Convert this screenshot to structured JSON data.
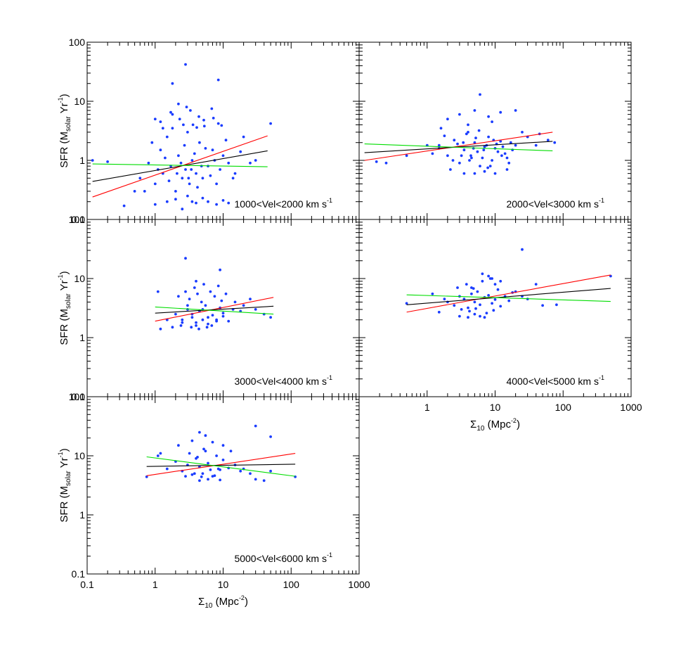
{
  "figure": {
    "ylabel": {
      "main": "SFR (M",
      "sub": "solar",
      "mid": " Yr",
      "sup": "-1",
      "close": ")"
    },
    "xlabel": {
      "sigma": "Σ",
      "sub": "10",
      "mid": " (Mpc",
      "sup": "-2",
      "close": ")"
    },
    "y_ticks": [
      "0.1",
      "1",
      "10",
      "100"
    ],
    "x_ticks": [
      "0.1",
      "1",
      "10",
      "100",
      "1000"
    ]
  },
  "chart_data": [
    {
      "type": "scatter",
      "annotation": {
        "text": "1000<Vel<2000 km s",
        "sup": "-1"
      },
      "xscale": "log",
      "yscale": "log",
      "xlim": [
        0.1,
        1000
      ],
      "ylim": [
        0.1,
        100
      ],
      "points": {
        "x": [
          0.6,
          0.8,
          1.0,
          1.2,
          1.3,
          1.5,
          1.7,
          2.0,
          2.2,
          2.5,
          2.8,
          3.0,
          3.2,
          3.5,
          4.0,
          4.5,
          5.0,
          6.0,
          7.0,
          8.0,
          10.0,
          12.0,
          15.0,
          20.0,
          30.0,
          0.7,
          0.9,
          1.1,
          1.4,
          1.6,
          1.8,
          2.1,
          2.4,
          2.7,
          3.1,
          3.4,
          3.8,
          4.2,
          4.8,
          5.5,
          6.5,
          7.5,
          9.0,
          11.0,
          14.0,
          18.0,
          25.0,
          0.12,
          0.2,
          0.35,
          0.5,
          1.0,
          1.5,
          2.0,
          2.5,
          3.0,
          3.5,
          4.0,
          5.0,
          6.0,
          8.0,
          10.0,
          12.0,
          1.2,
          1.8,
          2.3,
          2.9,
          3.6,
          4.4,
          5.3,
          6.8,
          8.5,
          1.0,
          1.3,
          1.7,
          2.2,
          2.6,
          3.3,
          4.1,
          5.2,
          7.2,
          9.5,
          2.8,
          8.5,
          1.8,
          50.0
        ],
        "y": [
          0.5,
          0.9,
          0.4,
          1.5,
          0.6,
          2.5,
          0.8,
          0.3,
          1.2,
          0.5,
          0.7,
          3.0,
          0.4,
          1.0,
          0.6,
          2.0,
          0.5,
          0.8,
          1.5,
          0.4,
          1.2,
          0.9,
          0.6,
          2.5,
          1.0,
          0.3,
          2.0,
          0.7,
          1.1,
          0.45,
          3.5,
          0.6,
          0.9,
          1.8,
          0.5,
          0.7,
          1.3,
          0.35,
          0.8,
          1.6,
          0.55,
          1.0,
          0.7,
          2.2,
          0.5,
          1.4,
          0.9,
          1.0,
          0.95,
          0.17,
          0.3,
          0.18,
          0.2,
          0.22,
          0.15,
          0.25,
          0.2,
          0.19,
          0.23,
          0.2,
          0.18,
          0.21,
          0.19,
          4.5,
          6.0,
          5.0,
          8.0,
          4.0,
          5.5,
          3.8,
          7.5,
          4.2,
          5.0,
          3.5,
          6.5,
          9.0,
          4.0,
          7.0,
          3.6,
          4.8,
          5.2,
          3.9,
          42.0,
          23.0,
          20.0,
          4.2
        ]
      },
      "fits": [
        {
          "color": "#ff0000",
          "x": [
            0.12,
            45
          ],
          "y": [
            0.24,
            2.6
          ]
        },
        {
          "color": "#000000",
          "x": [
            0.12,
            45
          ],
          "y": [
            0.44,
            1.45
          ]
        },
        {
          "color": "#00dd00",
          "x": [
            0.12,
            45
          ],
          "y": [
            0.87,
            0.78
          ]
        }
      ]
    },
    {
      "type": "scatter",
      "annotation": {
        "text": "2000<Vel<3000 km s",
        "sup": "-1"
      },
      "xscale": "log",
      "yscale": "log",
      "xlim": [
        0.1,
        1000
      ],
      "ylim": [
        0.1,
        100
      ],
      "points": {
        "x": [
          1.5,
          2.0,
          2.5,
          3.0,
          3.5,
          4.0,
          4.5,
          5.0,
          5.5,
          6.0,
          7.0,
          8.0,
          9.0,
          10.0,
          12.0,
          14.0,
          16.0,
          18.0,
          20.0,
          1.8,
          2.2,
          2.8,
          3.2,
          3.8,
          4.2,
          4.8,
          5.2,
          6.5,
          7.5,
          8.5,
          9.5,
          11.0,
          13.0,
          15.0,
          17.0,
          1.2,
          1.6,
          2.4,
          3.4,
          4.4,
          5.8,
          6.8,
          7.8,
          10.5,
          12.5,
          0.18,
          0.25,
          0.5,
          1.0,
          1.5,
          25.0,
          30.0,
          40.0,
          45.0,
          60.0,
          75.0,
          2.0,
          3.0,
          5.0,
          8.0,
          12.0,
          3.5,
          5.0,
          7.0,
          10.0,
          15.0,
          20.0,
          6.0,
          4.0,
          9.0
        ],
        "y": [
          1.8,
          1.2,
          2.2,
          0.9,
          1.5,
          3.0,
          1.1,
          2.0,
          1.4,
          0.8,
          1.7,
          2.5,
          1.0,
          1.6,
          2.1,
          1.3,
          0.9,
          1.5,
          1.8,
          2.6,
          0.7,
          1.9,
          1.2,
          2.8,
          1.0,
          1.6,
          2.4,
          1.1,
          1.8,
          0.8,
          2.2,
          1.4,
          1.7,
          1.1,
          2.0,
          1.3,
          3.5,
          1.0,
          2.0,
          1.2,
          3.2,
          1.5,
          0.75,
          1.9,
          1.2,
          0.95,
          0.9,
          1.2,
          1.8,
          1.6,
          3.0,
          2.5,
          1.8,
          2.8,
          2.2,
          2.0,
          5.0,
          6.0,
          7.0,
          5.5,
          6.5,
          0.6,
          0.6,
          0.65,
          0.6,
          0.7,
          7.0,
          13.0,
          4.0,
          4.5
        ]
      },
      "fits": [
        {
          "color": "#ff0000",
          "x": [
            0.12,
            70
          ],
          "y": [
            1.0,
            3.0
          ]
        },
        {
          "color": "#000000",
          "x": [
            0.12,
            70
          ],
          "y": [
            1.35,
            2.1
          ]
        },
        {
          "color": "#00dd00",
          "x": [
            0.12,
            70
          ],
          "y": [
            1.9,
            1.45
          ]
        }
      ]
    },
    {
      "type": "scatter",
      "annotation": {
        "text": "3000<Vel<4000 km s",
        "sup": "-1"
      },
      "xscale": "log",
      "yscale": "log",
      "xlim": [
        0.1,
        1000
      ],
      "ylim": [
        0.1,
        100
      ],
      "points": {
        "x": [
          1.5,
          2.0,
          2.5,
          3.0,
          3.5,
          4.0,
          4.5,
          5.0,
          5.5,
          6.0,
          7.0,
          8.0,
          9.0,
          10.0,
          12.0,
          14.0,
          2.2,
          2.8,
          3.2,
          3.8,
          4.2,
          4.8,
          5.2,
          6.5,
          7.5,
          8.5,
          9.5,
          11.0,
          1.2,
          1.1,
          1.8,
          2.4,
          3.4,
          4.4,
          5.8,
          6.8,
          20.0,
          25.0,
          30.0,
          40.0,
          50.0,
          15.0,
          18.0,
          2.5,
          3.0,
          3.5,
          4.0,
          5.0,
          6.0,
          8.0,
          10.0,
          2.8,
          9.0,
          4.0
        ],
        "y": [
          2.0,
          2.5,
          1.8,
          3.0,
          2.2,
          1.6,
          2.8,
          2.0,
          3.5,
          1.7,
          2.4,
          2.0,
          3.2,
          2.6,
          1.9,
          3.0,
          5.0,
          6.0,
          4.5,
          7.0,
          5.5,
          4.0,
          8.0,
          6.0,
          5.0,
          7.5,
          4.2,
          5.5,
          1.4,
          6.0,
          1.5,
          1.6,
          1.5,
          1.4,
          1.5,
          1.6,
          3.5,
          4.5,
          3.0,
          2.5,
          2.2,
          4.0,
          2.8,
          2.0,
          3.5,
          2.5,
          1.8,
          3.0,
          2.2,
          1.9,
          2.3,
          22.0,
          14.0,
          9.0
        ]
      },
      "fits": [
        {
          "color": "#ff0000",
          "x": [
            1.0,
            55
          ],
          "y": [
            1.9,
            4.8
          ]
        },
        {
          "color": "#000000",
          "x": [
            1.0,
            55
          ],
          "y": [
            2.6,
            3.4
          ]
        },
        {
          "color": "#00dd00",
          "x": [
            1.0,
            55
          ],
          "y": [
            3.3,
            2.5
          ]
        }
      ]
    },
    {
      "type": "scatter",
      "annotation": {
        "text": "4000<Vel<5000 km s",
        "sup": "-1"
      },
      "xscale": "log",
      "yscale": "log",
      "xlim": [
        0.1,
        1000
      ],
      "ylim": [
        0.1,
        100
      ],
      "points": {
        "x": [
          2.0,
          2.5,
          3.0,
          3.5,
          4.0,
          4.5,
          5.0,
          5.5,
          6.0,
          7.0,
          8.0,
          9.0,
          10.0,
          11.0,
          12.0,
          14.0,
          16.0,
          18.0,
          2.8,
          3.2,
          3.8,
          4.2,
          4.8,
          5.2,
          6.5,
          7.5,
          8.5,
          9.5,
          1.2,
          1.5,
          1.8,
          20.0,
          25.0,
          30.0,
          40.0,
          50.0,
          80.0,
          0.5,
          3.0,
          4.0,
          5.0,
          6.0,
          7.0,
          8.0,
          10.0,
          4.5,
          6.5,
          9.0,
          12.0,
          25.0,
          500.0
        ],
        "y": [
          4.0,
          3.5,
          5.0,
          4.5,
          3.2,
          5.5,
          4.0,
          6.0,
          3.6,
          4.8,
          5.2,
          3.8,
          4.4,
          6.5,
          3.4,
          5.0,
          4.2,
          5.8,
          7.0,
          3.0,
          8.0,
          2.8,
          6.8,
          3.1,
          9.0,
          2.6,
          10.0,
          2.9,
          5.5,
          2.7,
          4.5,
          6.0,
          5.0,
          4.5,
          8.0,
          3.5,
          3.6,
          3.8,
          2.3,
          2.2,
          2.5,
          2.3,
          2.2,
          11.0,
          8.0,
          7.0,
          12.0,
          10.0,
          9.0,
          31.0,
          11.0
        ]
      },
      "fits": [
        {
          "color": "#ff0000",
          "x": [
            0.5,
            500
          ],
          "y": [
            2.7,
            11.5
          ]
        },
        {
          "color": "#000000",
          "x": [
            0.5,
            500
          ],
          "y": [
            3.6,
            6.8
          ]
        },
        {
          "color": "#00dd00",
          "x": [
            0.5,
            500
          ],
          "y": [
            5.3,
            4.1
          ]
        }
      ]
    },
    {
      "type": "scatter",
      "annotation": {
        "text": "5000<Vel<6000 km s",
        "sup": "-1"
      },
      "xscale": "log",
      "yscale": "log",
      "xlim": [
        0.1,
        1000
      ],
      "ylim": [
        0.1,
        100
      ],
      "points": {
        "x": [
          1.5,
          2.0,
          2.5,
          3.0,
          3.5,
          4.0,
          4.5,
          5.0,
          5.5,
          6.0,
          7.0,
          8.0,
          9.0,
          10.0,
          12.0,
          15.0,
          18.0,
          2.2,
          2.8,
          3.2,
          3.8,
          4.2,
          4.8,
          5.2,
          6.5,
          7.5,
          8.5,
          1.2,
          1.1,
          0.75,
          20.0,
          25.0,
          30.0,
          40.0,
          50.0,
          115.0,
          4.5,
          5.5,
          3.5,
          7.0,
          10.0,
          13.0,
          30.0,
          50.0,
          4.5,
          6.0,
          9.0
        ],
        "y": [
          6.0,
          8.0,
          5.5,
          7.0,
          4.8,
          9.0,
          6.5,
          5.0,
          12.0,
          7.5,
          4.5,
          10.0,
          5.8,
          8.5,
          6.2,
          7.0,
          5.5,
          15.0,
          4.5,
          11.0,
          5.0,
          9.5,
          4.4,
          13.0,
          5.8,
          4.6,
          6.0,
          11.0,
          10.0,
          4.4,
          6.0,
          5.0,
          4.0,
          3.8,
          5.5,
          4.4,
          25.0,
          22.0,
          18.0,
          17.0,
          15.0,
          12.0,
          32.0,
          21.0,
          3.8,
          4.0,
          3.9
        ]
      },
      "fits": [
        {
          "color": "#ff0000",
          "x": [
            0.75,
            115
          ],
          "y": [
            4.6,
            11.0
          ]
        },
        {
          "color": "#000000",
          "x": [
            0.75,
            115
          ],
          "y": [
            6.6,
            7.2
          ]
        },
        {
          "color": "#00dd00",
          "x": [
            0.75,
            115
          ],
          "y": [
            9.6,
            4.5
          ]
        }
      ]
    }
  ]
}
